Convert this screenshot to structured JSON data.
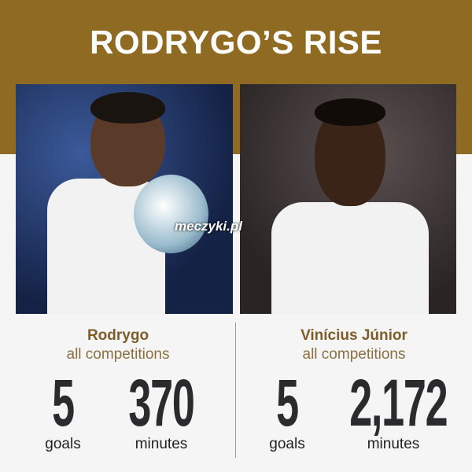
{
  "title": "RODRYGO’S RISE",
  "watermark": "meczyki.pl",
  "colors": {
    "band": "#8e6a22",
    "name": "#7d5d2a",
    "number": "#2b2b2e"
  },
  "players": [
    {
      "name": "Rodrygo",
      "scope": "all competitions",
      "goals": "5",
      "goals_label": "goals",
      "minutes": "370",
      "minutes_label": "minutes"
    },
    {
      "name": "Vinícius Júnior",
      "scope": "all competitions",
      "goals": "5",
      "goals_label": "goals",
      "minutes": "2,172",
      "minutes_label": "minutes"
    }
  ]
}
